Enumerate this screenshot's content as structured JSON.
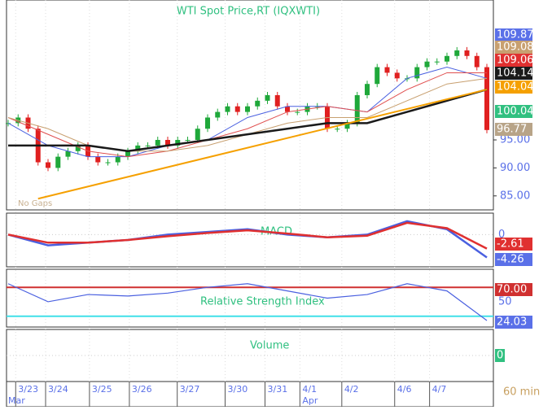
{
  "chart_data": {
    "type": "candlestick",
    "title": "WTI  Spot Price,RT (IQXWTI)",
    "annotation": "No Gaps",
    "interval": "60 min",
    "months": [
      {
        "value": 0,
        "label": "Mar"
      },
      {
        "value": 29.5,
        "label": "Apr"
      }
    ],
    "xticks": [
      {
        "value": 1,
        "label": "3/23"
      },
      {
        "value": 4,
        "label": "3/24"
      },
      {
        "value": 8.4,
        "label": "3/25"
      },
      {
        "value": 12.4,
        "label": "3/26"
      },
      {
        "value": 17.2,
        "label": "3/27"
      },
      {
        "value": 22,
        "label": "3/30"
      },
      {
        "value": 26,
        "label": "3/31"
      },
      {
        "value": 29.5,
        "label": "4/1"
      },
      {
        "value": 33.7,
        "label": "4/2"
      },
      {
        "value": 39,
        "label": "4/6"
      },
      {
        "value": 42.5,
        "label": "4/7"
      }
    ],
    "xlim": [
      0,
      48
    ],
    "ylim": [
      82.5,
      120
    ],
    "yticks": [
      {
        "value": 85,
        "label": "85.00"
      },
      {
        "value": 90,
        "label": "90.00"
      },
      {
        "value": 95,
        "label": "95.00"
      }
    ],
    "close": [
      98,
      99,
      97,
      91,
      90,
      92,
      93,
      94,
      92,
      91,
      91,
      92,
      93,
      94,
      94,
      95,
      94,
      95,
      95,
      97,
      99,
      100,
      101,
      100,
      101,
      102,
      103,
      101,
      100,
      100,
      101,
      101,
      97,
      97,
      98,
      103,
      105,
      108,
      107,
      106,
      106,
      108,
      109,
      109,
      110,
      111,
      110,
      108,
      96.77
    ],
    "up_color": "#1fa83a",
    "down_color": "#e02020",
    "ma_x": [
      0,
      4,
      8,
      12,
      16,
      20,
      24,
      28,
      32,
      36,
      40,
      44,
      48
    ],
    "series": [
      {
        "color": "#4a60e0",
        "values": [
          98,
          94,
          92,
          92,
          94,
          95,
          99,
          101,
          101,
          100,
          106,
          108,
          106
        ]
      },
      {
        "color": "#e05050",
        "values": [
          99,
          96,
          93,
          92,
          93,
          95,
          97,
          100,
          101,
          100,
          104,
          107,
          107
        ]
      },
      {
        "color": "#c8a070",
        "values": [
          99,
          97,
          94,
          93,
          93,
          94,
          96,
          98,
          99,
          99,
          102,
          105,
          106
        ]
      },
      {
        "color": "#1a1a1a",
        "values": [
          94,
          94,
          94,
          93,
          94,
          95,
          96,
          97,
          98,
          98,
          100,
          102,
          104
        ]
      }
    ],
    "trend": {
      "color": "#f5a000",
      "x": [
        3,
        48
      ],
      "values": [
        84.5,
        104
      ]
    },
    "price_tags": [
      {
        "value": 109.87,
        "color": "#5a70e8"
      },
      {
        "value": 109.08,
        "color": "#c8a070"
      },
      {
        "value": 109.06,
        "color": "#e03030"
      },
      {
        "value": 104.14,
        "color": "#1a1a1a"
      },
      {
        "value": 104.04,
        "color": "#f5a000"
      },
      {
        "value": 100.04,
        "color": "#30c080"
      },
      {
        "value": 96.77,
        "color": "#b8a488"
      }
    ],
    "macd": {
      "title": "MACD",
      "ylim": [
        -6,
        4
      ],
      "yticks": [
        0
      ],
      "series": [
        {
          "color": "#4a60e0",
          "values": [
            0,
            -2,
            -1.5,
            -1,
            0,
            0.5,
            1,
            0,
            -0.5,
            0,
            2.5,
            1,
            -4.26
          ]
        },
        {
          "color": "#e03030",
          "values": [
            0,
            -1.5,
            -1.5,
            -1,
            -0.3,
            0.3,
            0.8,
            0.2,
            -0.5,
            -0.2,
            2.2,
            1.2,
            -2.61
          ]
        }
      ],
      "tags": [
        {
          "value": -2.61,
          "color": "#e03030"
        },
        {
          "value": -4.26,
          "color": "#5a70e8"
        }
      ]
    },
    "rsi": {
      "title": "Relative Strength Index",
      "ylim": [
        15,
        95
      ],
      "yticks": [
        50
      ],
      "upper": 70,
      "upper_color": "#d03030",
      "lower": 30,
      "lower_color": "#40e0e8",
      "series": [
        {
          "color": "#4a60e0",
          "values": [
            75,
            50,
            60,
            58,
            62,
            70,
            75,
            65,
            55,
            60,
            75,
            65,
            24.03
          ]
        }
      ],
      "tags": [
        {
          "value": 70,
          "label": "70.00",
          "color": "#d03030"
        },
        {
          "value": 24.03,
          "color": "#5a70e8"
        }
      ]
    },
    "volume": {
      "title": "Volume",
      "tag": 0,
      "color": "#30c080"
    }
  }
}
